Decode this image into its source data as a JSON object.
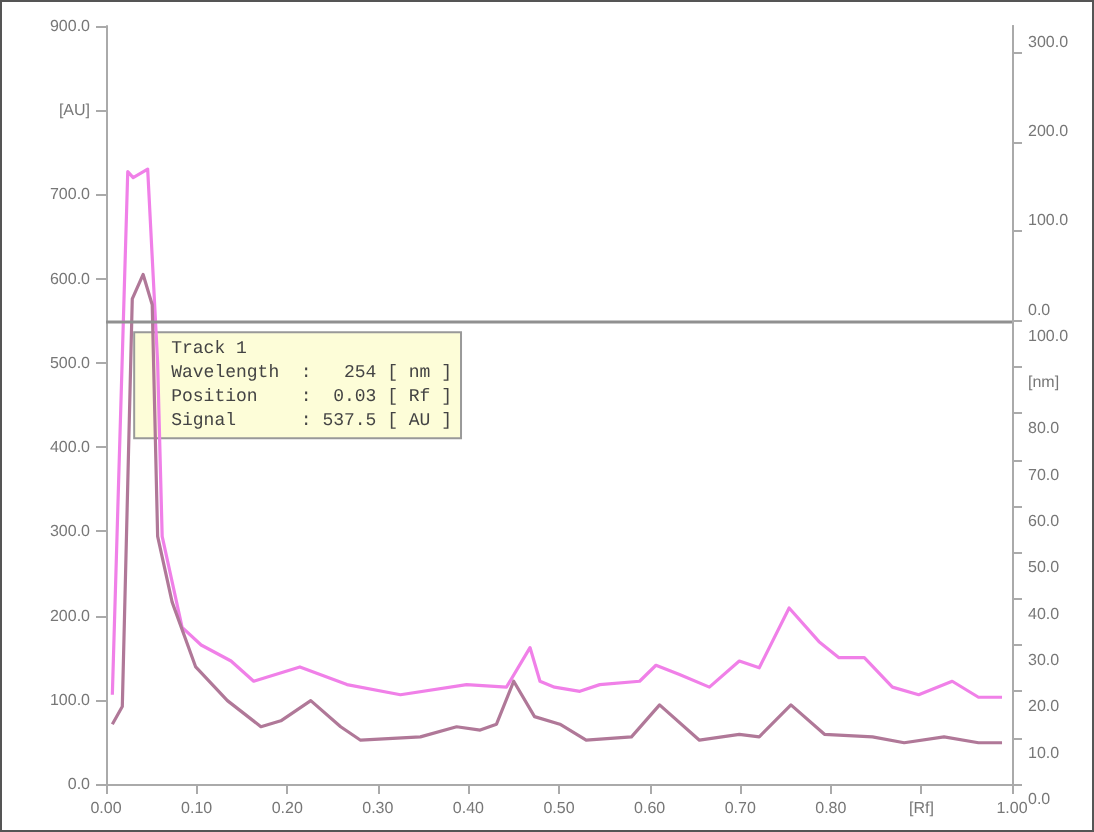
{
  "chart_data": {
    "type": "line",
    "grid": false,
    "marker": "none",
    "xlim": [
      0,
      1
    ],
    "xticks": [
      {
        "value": 0,
        "label": "0.00"
      },
      {
        "value": 0.1,
        "label": "0.10"
      },
      {
        "value": 0.2,
        "label": "0.20"
      },
      {
        "value": 0.3,
        "label": "0.30"
      },
      {
        "value": 0.4,
        "label": "0.40"
      },
      {
        "value": 0.5,
        "label": "0.50"
      },
      {
        "value": 0.6,
        "label": "0.60"
      },
      {
        "value": 0.7,
        "label": "0.70"
      },
      {
        "value": 0.8,
        "label": "0.80"
      },
      {
        "value": 0.9,
        "label": "[Rf]"
      },
      {
        "value": 1,
        "label": "1.00"
      }
    ],
    "ylim": [
      0,
      900
    ],
    "yticks": [
      {
        "value": 0,
        "label": "0.0"
      },
      {
        "value": 100,
        "label": "100.0"
      },
      {
        "value": 200,
        "label": "200.0"
      },
      {
        "value": 300,
        "label": "300.0"
      },
      {
        "value": 400,
        "label": "400.0"
      },
      {
        "value": 500,
        "label": "500.0"
      },
      {
        "value": 600,
        "label": "600.0"
      },
      {
        "value": 700,
        "label": "700.0"
      },
      {
        "value": 800,
        "label": "[AU]"
      },
      {
        "value": 900,
        "label": "900.0"
      }
    ],
    "y2lim": [
      0,
      163.6
    ],
    "y2ticks": [
      {
        "value": 0,
        "label": "0.0"
      },
      {
        "value": 10,
        "label": "10.0"
      },
      {
        "value": 20,
        "label": "20.0"
      },
      {
        "value": 30,
        "label": "30.0"
      },
      {
        "value": 40,
        "label": "40.0"
      },
      {
        "value": 50,
        "label": "50.0"
      },
      {
        "value": 60,
        "label": "60.0"
      },
      {
        "value": 70,
        "label": "70.0"
      },
      {
        "value": 80,
        "label": "80.0"
      },
      {
        "value": 90,
        "label": "[nm]"
      },
      {
        "value": 100,
        "label": "100.0"
      }
    ],
    "y3lim": [
      -518.6,
      330
    ],
    "y3ticks": [
      {
        "value": 0,
        "label": "0.0"
      },
      {
        "value": 100,
        "label": "100.0"
      },
      {
        "value": 200,
        "label": "200.0"
      },
      {
        "value": 300,
        "label": "300.0"
      }
    ],
    "ref_lines": [
      {
        "axis": "y",
        "value": 550,
        "color": "#909090"
      }
    ],
    "annotations": [
      {
        "text": "Track 1\nWavelength  :   254 [ nm ]\nPosition    :  0.03 [ Rf ]\nSignal      : 537.5 [ AU ]",
        "x": 0.03,
        "y": 537.5
      }
    ],
    "series": [
      {
        "color": "#f080e8",
        "x": [
          0.007,
          0.024,
          0.03,
          0.046,
          0.057,
          0.062,
          0.084,
          0.105,
          0.138,
          0.163,
          0.214,
          0.266,
          0.325,
          0.398,
          0.442,
          0.468,
          0.479,
          0.495,
          0.523,
          0.545,
          0.589,
          0.607,
          0.633,
          0.666,
          0.699,
          0.721,
          0.754,
          0.787,
          0.809,
          0.837,
          0.868,
          0.897,
          0.934,
          0.963,
          0.989
        ],
        "values": [
          106,
          727,
          720,
          730,
          500,
          294,
          186,
          165,
          146,
          122,
          139,
          118,
          106,
          118,
          115,
          162,
          122,
          115,
          110,
          118,
          122,
          141,
          130,
          115,
          146,
          138,
          209,
          169,
          150,
          150,
          115,
          106,
          122,
          103,
          103
        ]
      },
      {
        "color": "#b07898",
        "x": [
          0.007,
          0.018,
          0.029,
          0.041,
          0.051,
          0.057,
          0.073,
          0.099,
          0.134,
          0.171,
          0.193,
          0.226,
          0.259,
          0.281,
          0.347,
          0.387,
          0.413,
          0.431,
          0.45,
          0.473,
          0.501,
          0.53,
          0.58,
          0.611,
          0.655,
          0.699,
          0.721,
          0.756,
          0.793,
          0.846,
          0.881,
          0.925,
          0.963,
          0.989
        ],
        "values": [
          71,
          92,
          576,
          605,
          569,
          294,
          216,
          139,
          99,
          68,
          75,
          99,
          68,
          52,
          56,
          68,
          64,
          71,
          122,
          80,
          71,
          52,
          56,
          94,
          52,
          59,
          56,
          94,
          59,
          56,
          49,
          56,
          49,
          49
        ]
      }
    ]
  }
}
